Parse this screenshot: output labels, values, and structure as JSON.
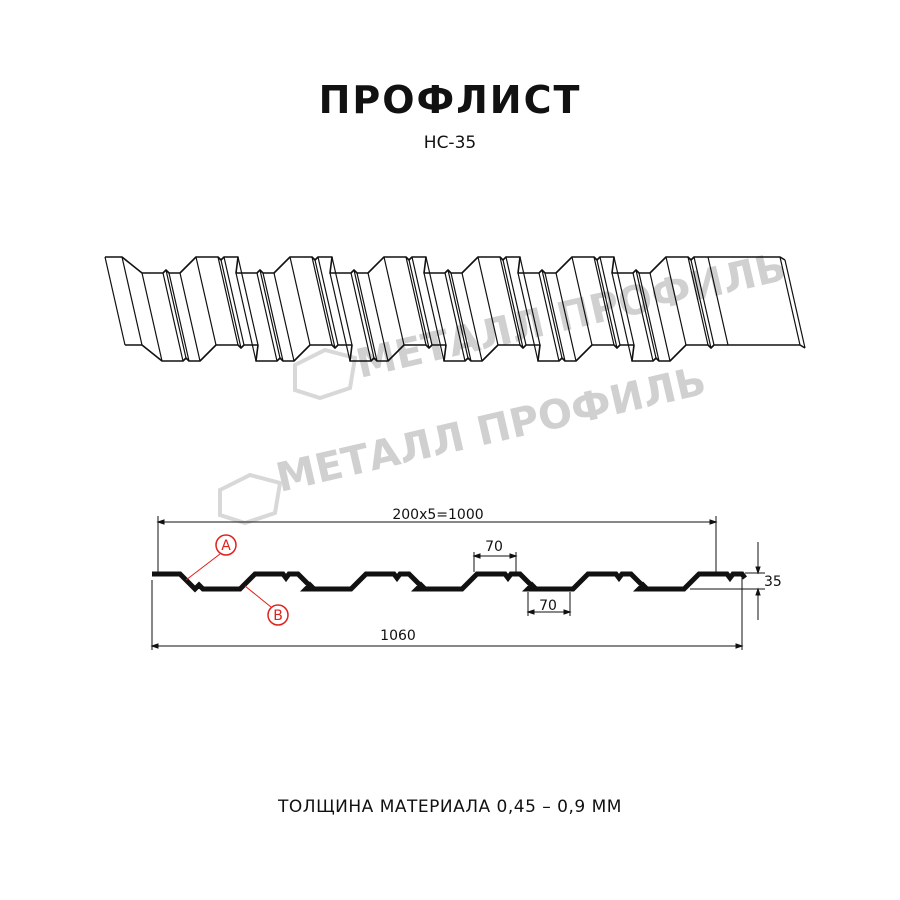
{
  "title": "ПРОФЛИСТ",
  "model": "НС-35",
  "watermark": "МЕТАЛЛ ПРОФИЛЬ",
  "dimensions": {
    "pitch_total": "200x5=1000",
    "crest_width": "70",
    "valley_width": "70",
    "height": "35",
    "total_width": "1060"
  },
  "markers": {
    "a": "A",
    "b": "B"
  },
  "footer": "ТОЛЩИНА МАТЕРИАЛА 0,45 – 0,9 ММ",
  "colors": {
    "line": "#111111",
    "marker": "#e0201c",
    "watermark": "#c8c8c8"
  }
}
